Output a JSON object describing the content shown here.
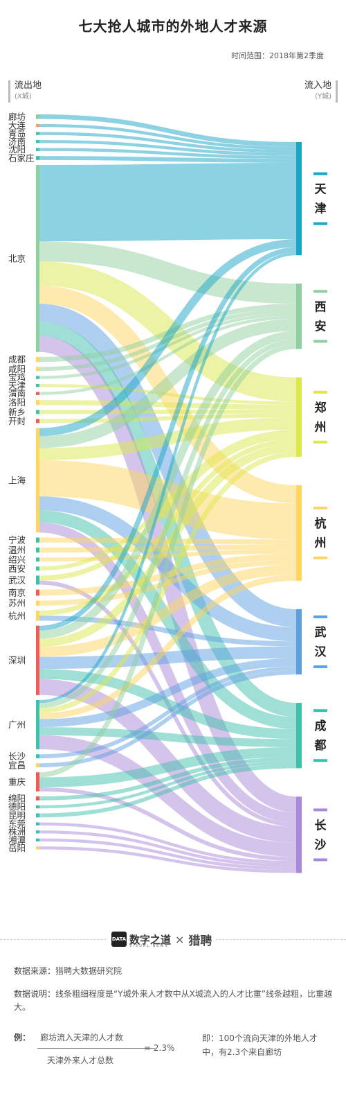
{
  "title": "七大抢人城市的外地人才来源",
  "period": "时间范围：2018年第2季度",
  "left_header": {
    "label": "流出地",
    "sub": "(X城)"
  },
  "right_header": {
    "label": "流入地",
    "sub": "(Y城)"
  },
  "chart_data": {
    "type": "sankey",
    "title": "七大抢人城市的外地人才来源",
    "colors": {
      "天津": "#1aa6c8",
      "西安": "#8fd0a0",
      "郑州": "#dce84a",
      "杭州": "#fdd560",
      "武汉": "#5e9fe0",
      "成都": "#3fc0ad",
      "长沙": "#a98ad8"
    },
    "sources": [
      {
        "name": "廊坊",
        "color": "#8fd0a0"
      },
      {
        "name": "大连",
        "color": "#f4a25a"
      },
      {
        "name": "青岛",
        "color": "#3fc0ad"
      },
      {
        "name": "济南",
        "color": "#3fc0ad"
      },
      {
        "name": "沈阳",
        "color": "#3fc0ad"
      },
      {
        "name": "石家庄",
        "color": "#3fc0ad"
      },
      {
        "name": "北京",
        "color": "#8fd0a0"
      },
      {
        "name": "成都",
        "color": "#fdd560"
      },
      {
        "name": "咸阳",
        "color": "#fdd560"
      },
      {
        "name": "宝鸡",
        "color": "#3fc0ad"
      },
      {
        "name": "天津",
        "color": "#3fc0ad"
      },
      {
        "name": "渭南",
        "color": "#f05b57"
      },
      {
        "name": "洛阳",
        "color": "#fdd560"
      },
      {
        "name": "新乡",
        "color": "#3fc0ad"
      },
      {
        "name": "开封",
        "color": "#f05b57"
      },
      {
        "name": "上海",
        "color": "#fdd560"
      },
      {
        "name": "宁波",
        "color": "#3fc0ad"
      },
      {
        "name": "温州",
        "color": "#3fc0ad"
      },
      {
        "name": "绍兴",
        "color": "#3fc0ad"
      },
      {
        "name": "西安",
        "color": "#3fc0ad"
      },
      {
        "name": "武汉",
        "color": "#3fc0ad"
      },
      {
        "name": "南京",
        "color": "#f05b57"
      },
      {
        "name": "苏州",
        "color": "#fdd560"
      },
      {
        "name": "杭州",
        "color": "#fdd560"
      },
      {
        "name": "深圳",
        "color": "#f05b57"
      },
      {
        "name": "广州",
        "color": "#3fc0ad"
      },
      {
        "name": "长沙",
        "color": "#3fc0ad"
      },
      {
        "name": "宜昌",
        "color": "#fdd560"
      },
      {
        "name": "重庆",
        "color": "#f05b57"
      },
      {
        "name": "绵阳",
        "color": "#f05b57"
      },
      {
        "name": "德阳",
        "color": "#3fc0ad"
      },
      {
        "name": "昆明",
        "color": "#3fc0ad"
      },
      {
        "name": "东莞",
        "color": "#3fc0ad"
      },
      {
        "name": "株洲",
        "color": "#3fc0ad"
      },
      {
        "name": "湘潭",
        "color": "#3fc0ad"
      },
      {
        "name": "岳阳",
        "color": "#fdd560"
      }
    ],
    "targets": [
      "天津",
      "西安",
      "郑州",
      "杭州",
      "武汉",
      "成都",
      "长沙"
    ],
    "flows": [
      {
        "from": "廊坊",
        "to": "天津",
        "value": 2.3
      },
      {
        "from": "大连",
        "to": "天津",
        "value": 1.5
      },
      {
        "from": "青岛",
        "to": "天津",
        "value": 1.5
      },
      {
        "from": "济南",
        "to": "天津",
        "value": 1.5
      },
      {
        "from": "沈阳",
        "to": "天津",
        "value": 1.5
      },
      {
        "from": "石家庄",
        "to": "天津",
        "value": 2
      },
      {
        "from": "北京",
        "to": "天津",
        "value": 38
      },
      {
        "from": "北京",
        "to": "西安",
        "value": 10
      },
      {
        "from": "北京",
        "to": "郑州",
        "value": 12
      },
      {
        "from": "北京",
        "to": "杭州",
        "value": 9
      },
      {
        "from": "北京",
        "to": "武汉",
        "value": 9
      },
      {
        "from": "北京",
        "to": "成都",
        "value": 7
      },
      {
        "from": "北京",
        "to": "长沙",
        "value": 8
      },
      {
        "from": "成都",
        "to": "西安",
        "value": 2.5
      },
      {
        "from": "咸阳",
        "to": "西安",
        "value": 2
      },
      {
        "from": "宝鸡",
        "to": "西安",
        "value": 1.5
      },
      {
        "from": "天津",
        "to": "郑州",
        "value": 1.5
      },
      {
        "from": "渭南",
        "to": "西安",
        "value": 1.5
      },
      {
        "from": "洛阳",
        "to": "郑州",
        "value": 2.5
      },
      {
        "from": "新乡",
        "to": "郑州",
        "value": 2
      },
      {
        "from": "开封",
        "to": "郑州",
        "value": 2
      },
      {
        "from": "上海",
        "to": "天津",
        "value": 4
      },
      {
        "from": "上海",
        "to": "西安",
        "value": 6
      },
      {
        "from": "上海",
        "to": "郑州",
        "value": 6
      },
      {
        "from": "上海",
        "to": "杭州",
        "value": 18
      },
      {
        "from": "上海",
        "to": "武汉",
        "value": 7
      },
      {
        "from": "上海",
        "to": "成都",
        "value": 6
      },
      {
        "from": "上海",
        "to": "长沙",
        "value": 5
      },
      {
        "from": "宁波",
        "to": "杭州",
        "value": 2.5
      },
      {
        "from": "温州",
        "to": "杭州",
        "value": 2.5
      },
      {
        "from": "绍兴",
        "to": "杭州",
        "value": 2
      },
      {
        "from": "西安",
        "to": "郑州",
        "value": 2
      },
      {
        "from": "武汉",
        "to": "郑州",
        "value": 2.5
      },
      {
        "from": "武汉",
        "to": "长沙",
        "value": 2
      },
      {
        "from": "南京",
        "to": "杭州",
        "value": 3
      },
      {
        "from": "苏州",
        "to": "杭州",
        "value": 2.5
      },
      {
        "from": "杭州",
        "to": "郑州",
        "value": 2.5
      },
      {
        "from": "杭州",
        "to": "武汉",
        "value": 2.5
      },
      {
        "from": "深圳",
        "to": "天津",
        "value": 2.5
      },
      {
        "from": "深圳",
        "to": "西安",
        "value": 4
      },
      {
        "from": "深圳",
        "to": "郑州",
        "value": 4
      },
      {
        "from": "深圳",
        "to": "杭州",
        "value": 5
      },
      {
        "from": "深圳",
        "to": "武汉",
        "value": 6
      },
      {
        "from": "深圳",
        "to": "成都",
        "value": 5
      },
      {
        "from": "深圳",
        "to": "长沙",
        "value": 8
      },
      {
        "from": "广州",
        "to": "天津",
        "value": 1.5
      },
      {
        "from": "广州",
        "to": "西安",
        "value": 2.5
      },
      {
        "from": "广州",
        "to": "郑州",
        "value": 2.5
      },
      {
        "from": "广州",
        "to": "杭州",
        "value": 3
      },
      {
        "from": "广州",
        "to": "武汉",
        "value": 4
      },
      {
        "from": "广州",
        "to": "成都",
        "value": 4
      },
      {
        "from": "广州",
        "to": "长沙",
        "value": 7
      },
      {
        "from": "长沙",
        "to": "武汉",
        "value": 2
      },
      {
        "from": "宜昌",
        "to": "武汉",
        "value": 2
      },
      {
        "from": "重庆",
        "to": "西安",
        "value": 2.5
      },
      {
        "from": "重庆",
        "to": "成都",
        "value": 5
      },
      {
        "from": "重庆",
        "to": "长沙",
        "value": 2
      },
      {
        "from": "绵阳",
        "to": "成都",
        "value": 2
      },
      {
        "from": "德阳",
        "to": "成都",
        "value": 1.5
      },
      {
        "from": "昆明",
        "to": "成都",
        "value": 2
      },
      {
        "from": "东莞",
        "to": "长沙",
        "value": 1.5
      },
      {
        "from": "株洲",
        "to": "长沙",
        "value": 1.5
      },
      {
        "from": "湘潭",
        "to": "长沙",
        "value": 1.5
      },
      {
        "from": "岳阳",
        "to": "长沙",
        "value": 1.5
      }
    ]
  },
  "brand": {
    "logo_mark": "DATA",
    "name": "数字之道",
    "sub": "VISUAL NEWS",
    "cross": "×",
    "partner": "猎聘"
  },
  "notes": {
    "source_label": "数据来源：",
    "source_value": "猎聘大数据研究院",
    "desc_label": "数据说明：",
    "desc_value": "线条粗细程度是“Y城外来人才数中从X城流入的人才比重”线条越粗，比重越大。"
  },
  "example": {
    "label": "例：",
    "numerator": "廊坊流入天津的人才数",
    "denominator": "天津外来人才总数",
    "equals": "= 2.3%",
    "explain": "即：100个流向天津的外地人才中，有2.3个来自廊坊"
  }
}
